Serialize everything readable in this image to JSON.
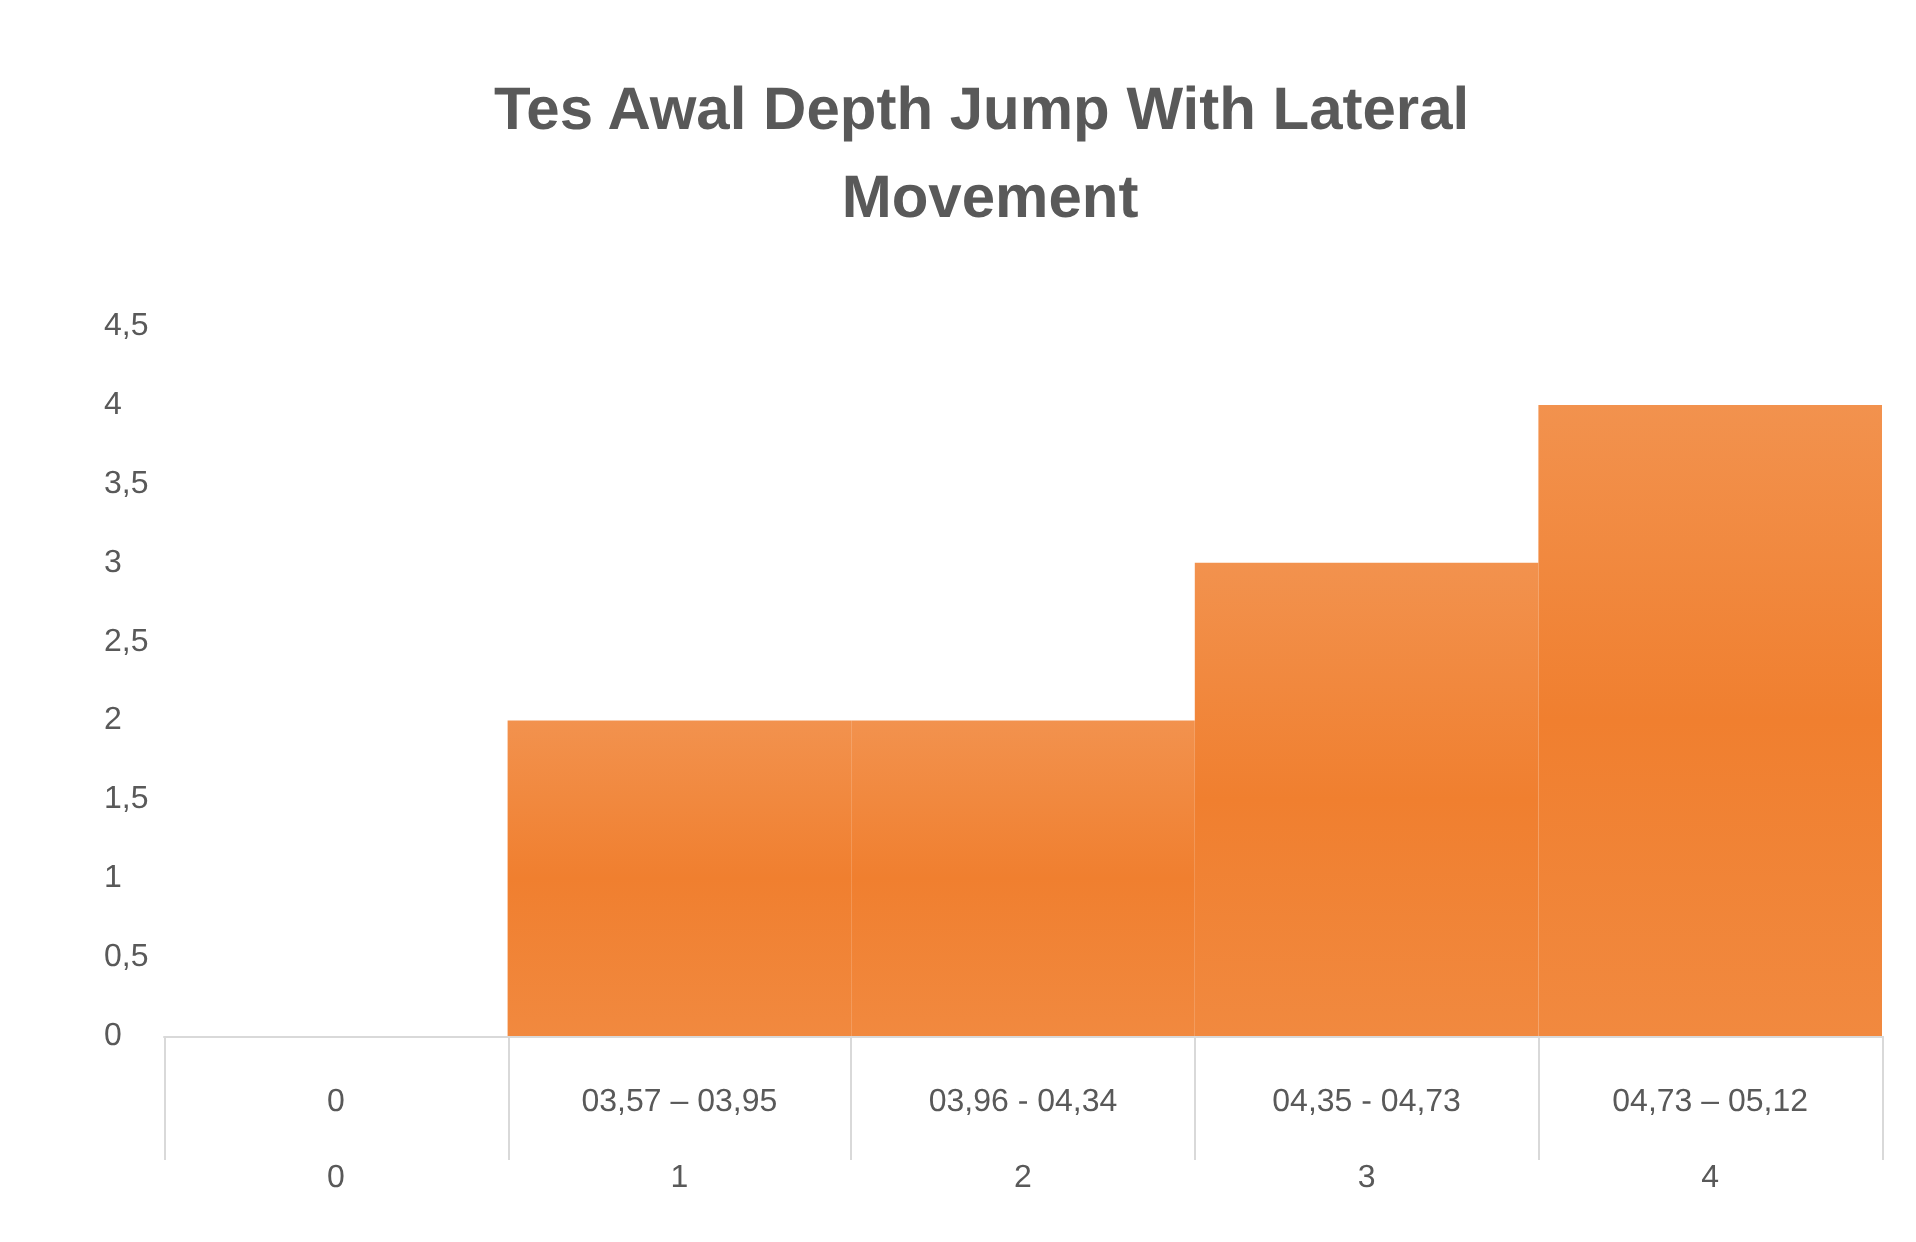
{
  "chart_data": {
    "type": "bar",
    "title": "Tes Awal Depth Jump With Lateral Movement",
    "categories": [
      "0\n0",
      "03,57 – 03,95\n1",
      "03,96 - 04,34\n2",
      "04,35 - 04,73\n3",
      "04,73 – 05,12\n4"
    ],
    "values": [
      0,
      2,
      2,
      3,
      4
    ],
    "color": "#f07f2f",
    "ylim": [
      0,
      4.5
    ],
    "yticks": [
      0,
      {
        "value": 0.5,
        "label": "0,5"
      },
      1,
      {
        "value": 1.5,
        "label": "1,5"
      },
      2,
      {
        "value": 2.5,
        "label": "2,5"
      },
      3,
      {
        "value": 3.5,
        "label": "3,5"
      },
      4,
      {
        "value": 4.5,
        "label": "4,5"
      }
    ],
    "grid": false
  }
}
